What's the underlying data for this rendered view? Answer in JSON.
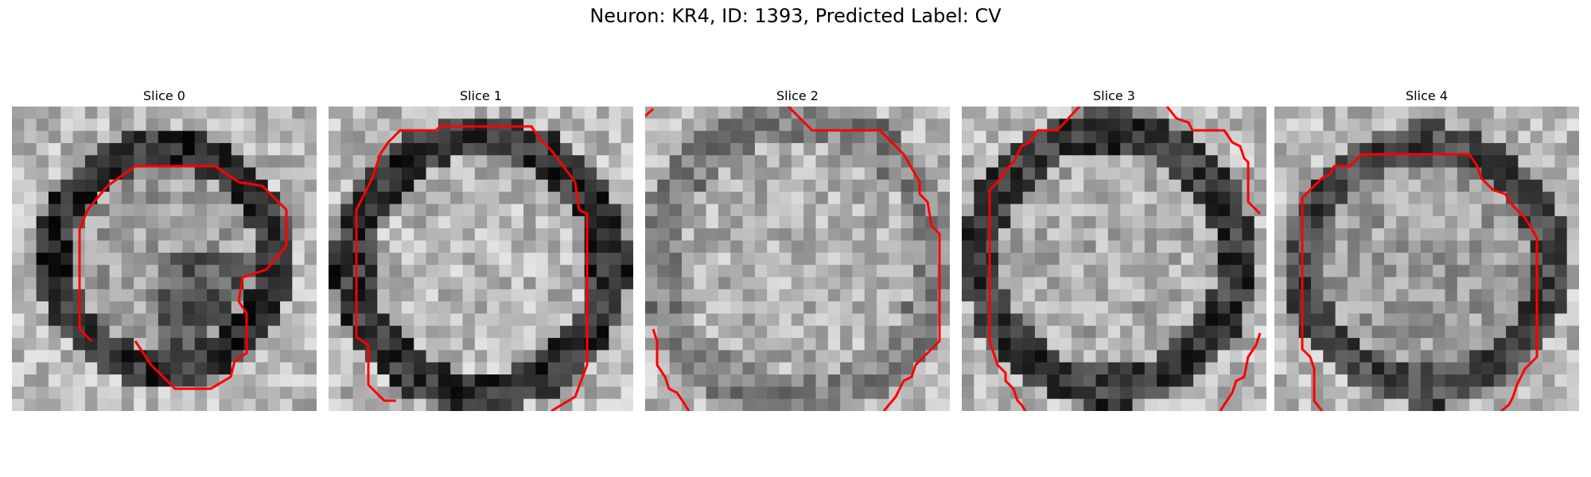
{
  "figure": {
    "title": "Neuron: KR4, ID: 1393, Predicted Label: CV"
  },
  "panels": [
    {
      "title": "Slice 0"
    },
    {
      "title": "Slice 1"
    },
    {
      "title": "Slice 2"
    },
    {
      "title": "Slice 3"
    },
    {
      "title": "Slice 4"
    }
  ],
  "style": {
    "contour_color": "#ff0000",
    "colormap": "grayscale"
  }
}
